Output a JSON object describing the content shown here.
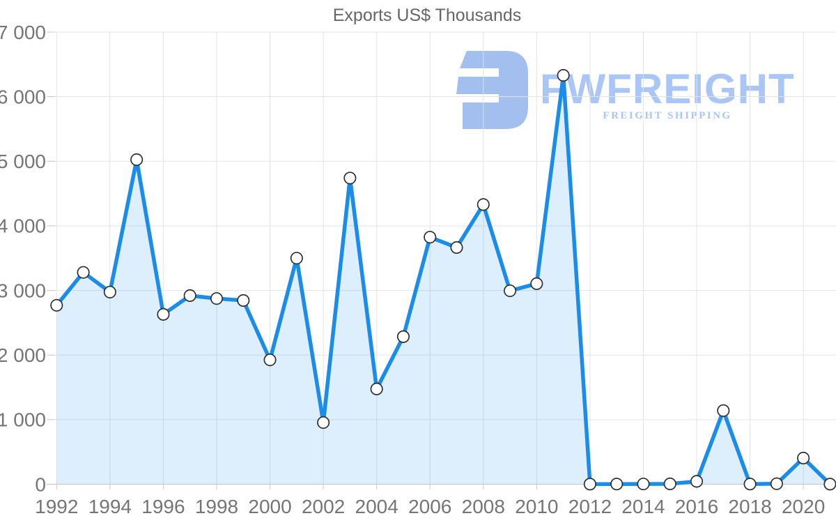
{
  "chart": {
    "title": "Exports US$ Thousands"
  },
  "watermark": {
    "wordmark": "FWFREIGHT",
    "subtitle": "FREIGHT SHIPPING"
  },
  "colors": {
    "line": "#1b8ce8",
    "area_fill": "#1b8ce8",
    "marker_fill": "#ffffff",
    "marker_stroke": "#2e2e2e",
    "gridline": "#e3e3e3",
    "axis_line": "#c9c9c9",
    "label": "#757575",
    "title": "#666666",
    "wordmark": "#a9c6f7",
    "subtitle": "#aac6f2",
    "logo": "#a3bfef"
  },
  "chart_data": {
    "type": "area",
    "title": "Exports US$ Thousands",
    "xlabel": "",
    "ylabel": "",
    "x": [
      1992,
      1993,
      1994,
      1995,
      1996,
      1997,
      1998,
      1999,
      2000,
      2001,
      2002,
      2003,
      2004,
      2005,
      2006,
      2007,
      2008,
      2009,
      2010,
      2011,
      2012,
      2013,
      2014,
      2015,
      2016,
      2017,
      2018,
      2019,
      2020,
      2021
    ],
    "values": [
      2770,
      3280,
      2975,
      5025,
      2630,
      2920,
      2875,
      2845,
      1925,
      3500,
      955,
      4740,
      1475,
      2285,
      3825,
      3665,
      4330,
      2995,
      3105,
      6330,
      2,
      3,
      4,
      6,
      45,
      1140,
      3,
      8,
      405,
      2
    ],
    "ylim": [
      0,
      7000
    ],
    "y_ticks": [
      0,
      1000,
      2000,
      3000,
      4000,
      5000,
      6000,
      7000
    ],
    "y_tick_labels": [
      "0",
      "1 000",
      "2 000",
      "3 000",
      "4 000",
      "5 000",
      "6 000",
      "7 000"
    ],
    "x_ticks": [
      1992,
      1994,
      1996,
      1998,
      2000,
      2002,
      2004,
      2006,
      2008,
      2010,
      2012,
      2014,
      2016,
      2018,
      2020
    ],
    "x_tick_labels": [
      "1992",
      "1994",
      "1996",
      "1998",
      "2000",
      "2002",
      "2004",
      "2006",
      "2008",
      "2010",
      "2012",
      "2014",
      "2016",
      "2018",
      "2020"
    ],
    "grid": true,
    "legend": false,
    "marker": "circle",
    "line_width": 5.5
  }
}
